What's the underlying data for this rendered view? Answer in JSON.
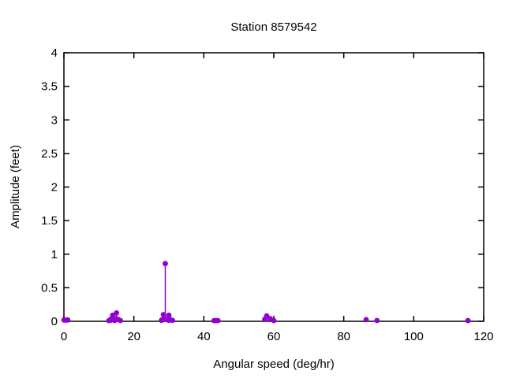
{
  "window": {
    "background": "#ffffff"
  },
  "chart_data": {
    "type": "scatter",
    "subtype": "stem-plot (impulses with points)",
    "title": "Station 8579542",
    "xlabel": "Angular speed (deg/hr)",
    "ylabel": "Amplitude (feet)",
    "xlim": [
      0,
      120
    ],
    "ylim": [
      0,
      4
    ],
    "xticks": [
      0,
      20,
      40,
      60,
      80,
      100,
      120
    ],
    "yticks": [
      0,
      0.5,
      1,
      1.5,
      2,
      2.5,
      3,
      3.5,
      4
    ],
    "grid": false,
    "legend_position": "none",
    "marker_color": "#9400D3",
    "axis_color": "#000000",
    "background_color": "#ffffff",
    "series": [
      {
        "name": "tidal constituent amplitudes",
        "points": [
          [
            0.04,
            0.02
          ],
          [
            0.54,
            0.018
          ],
          [
            1.1,
            0.02
          ],
          [
            12.85,
            0.01
          ],
          [
            13.4,
            0.03
          ],
          [
            13.47,
            0.018
          ],
          [
            13.94,
            0.09
          ],
          [
            14.5,
            0.012
          ],
          [
            14.96,
            0.04
          ],
          [
            15.04,
            0.125
          ],
          [
            15.58,
            0.025
          ],
          [
            16.14,
            0.012
          ],
          [
            27.9,
            0.015
          ],
          [
            27.97,
            0.02
          ],
          [
            28.44,
            0.1
          ],
          [
            28.51,
            0.03
          ],
          [
            28.98,
            0.86
          ],
          [
            29.53,
            0.03
          ],
          [
            29.96,
            0.015
          ],
          [
            30.0,
            0.09
          ],
          [
            30.08,
            0.04
          ],
          [
            31.02,
            0.015
          ],
          [
            42.93,
            0.01
          ],
          [
            43.48,
            0.012
          ],
          [
            44.03,
            0.01
          ],
          [
            57.42,
            0.03
          ],
          [
            57.97,
            0.08
          ],
          [
            58.98,
            0.04
          ],
          [
            60.0,
            0.012
          ],
          [
            86.4,
            0.025
          ],
          [
            89.5,
            0.012
          ],
          [
            115.5,
            0.01
          ]
        ]
      }
    ]
  }
}
